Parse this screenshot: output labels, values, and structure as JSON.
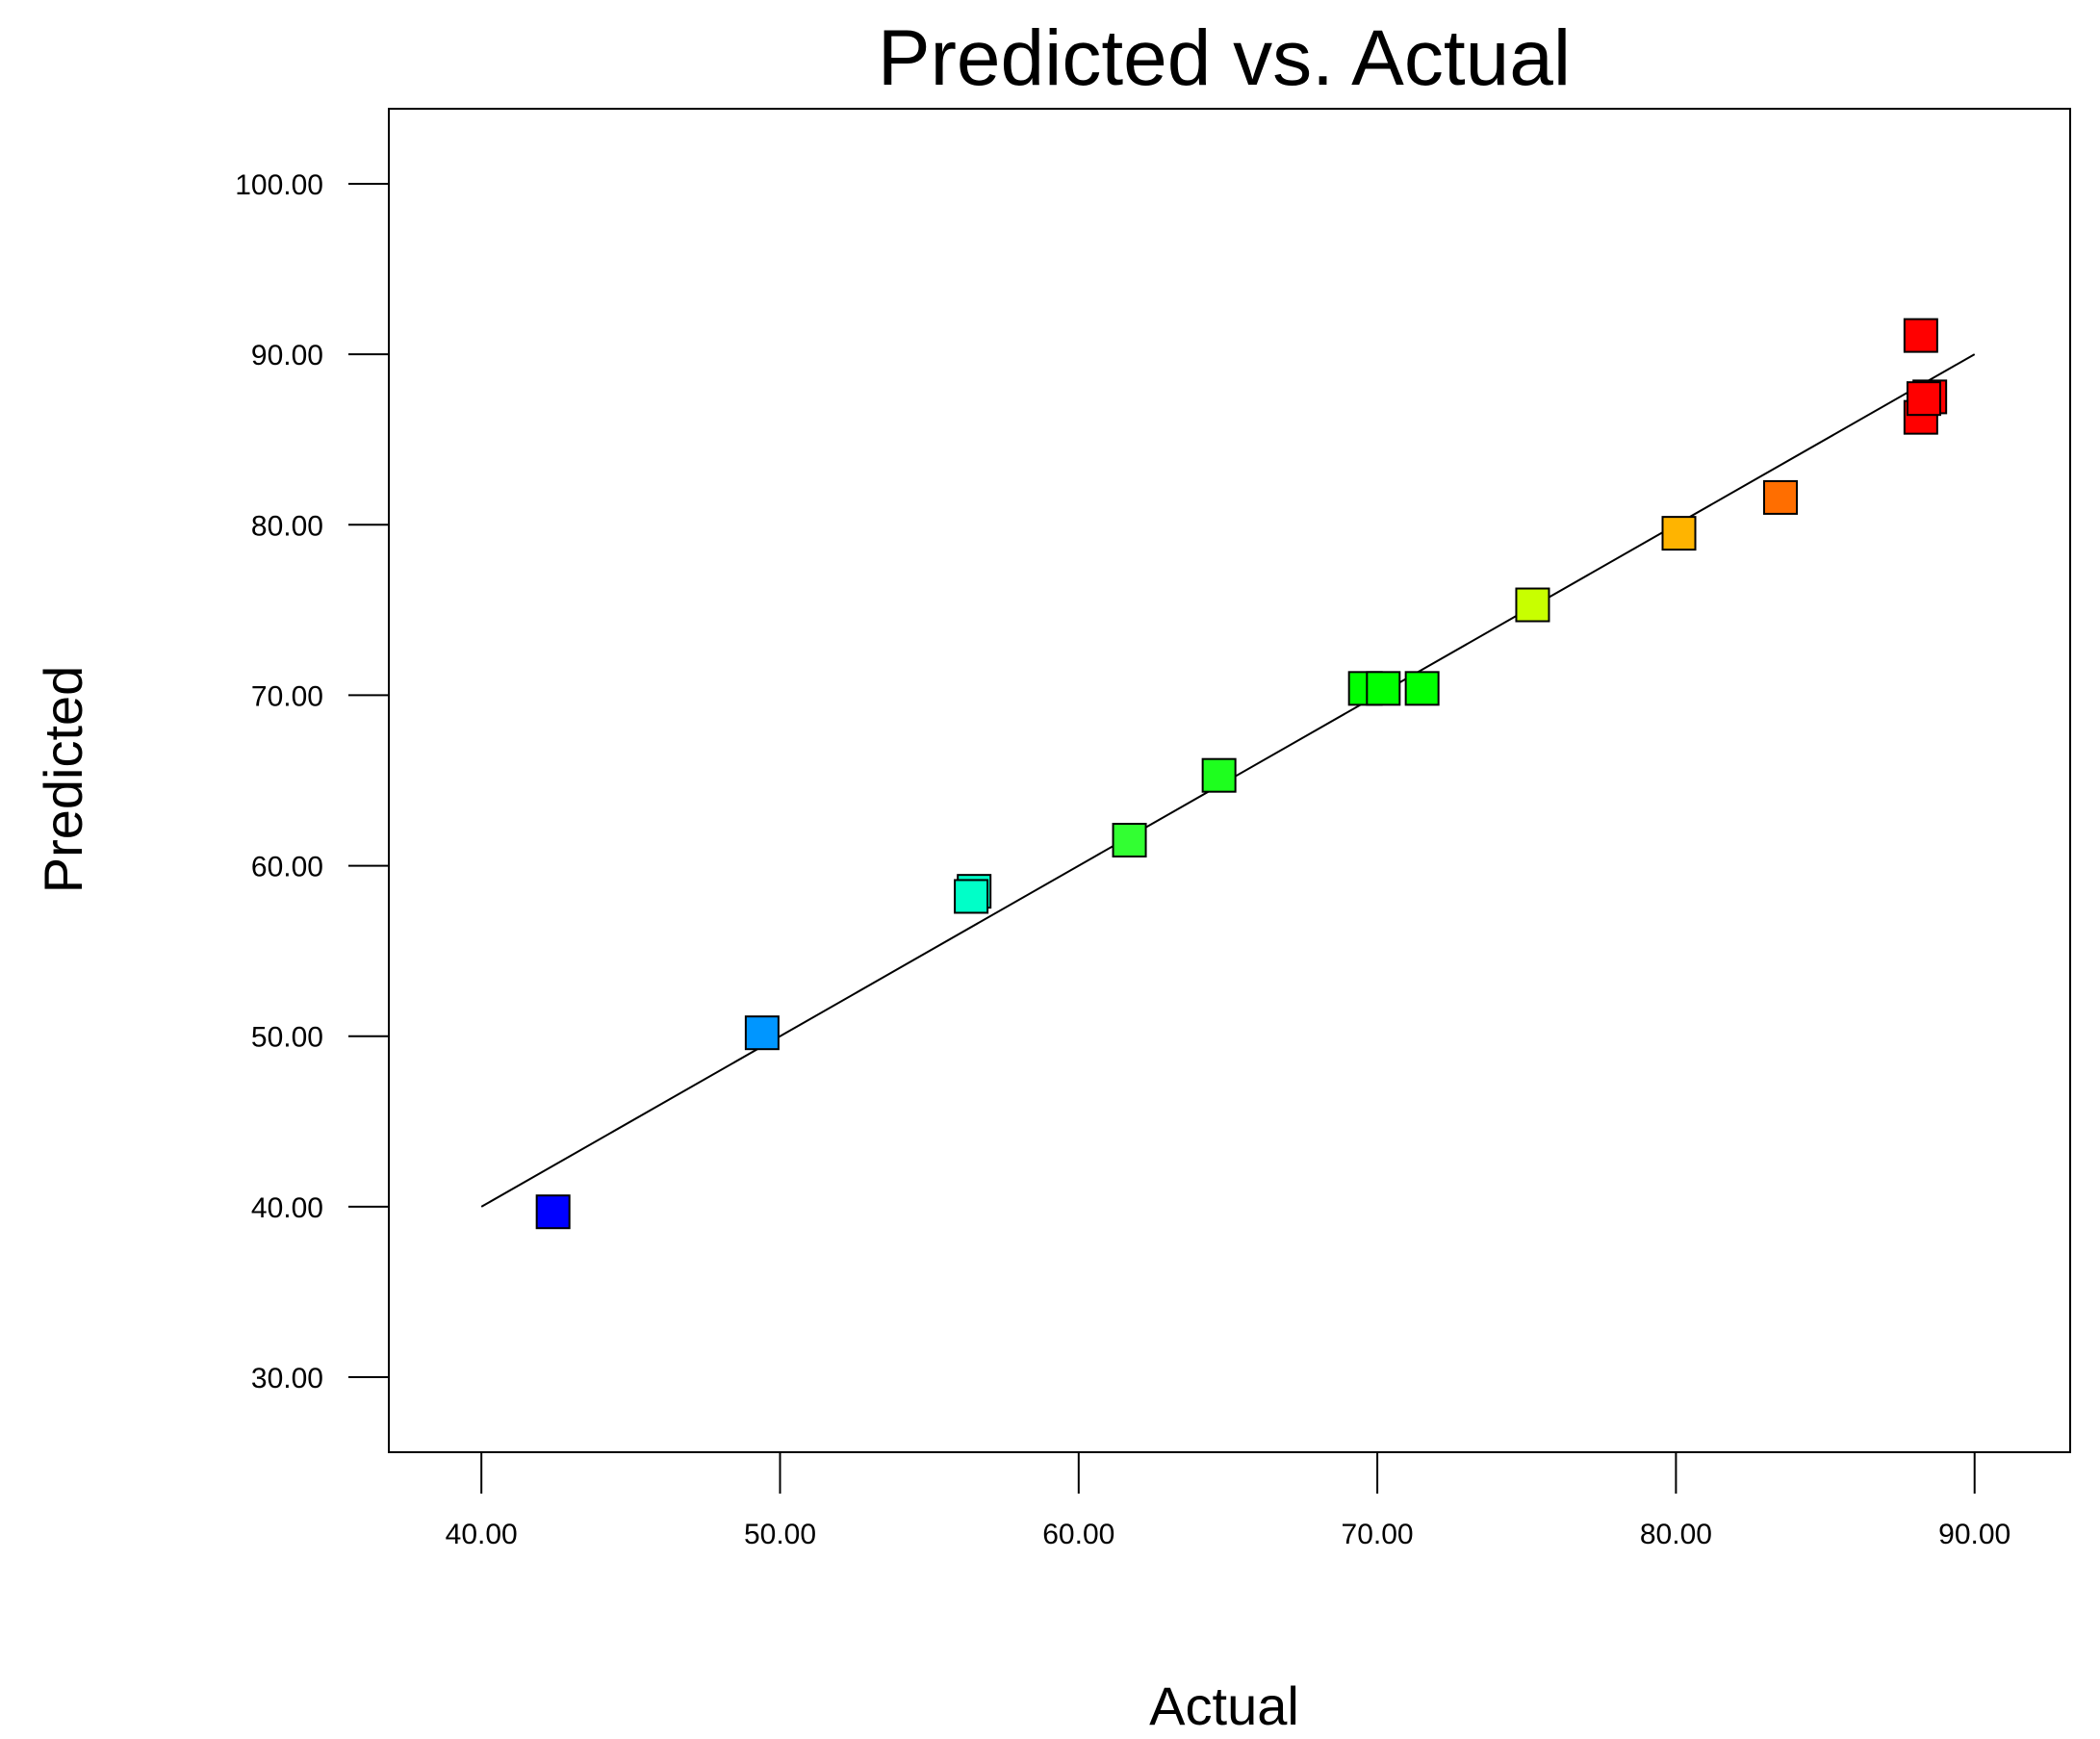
{
  "chart_data": {
    "type": "scatter",
    "title": "Predicted vs. Actual",
    "xlabel": "Actual",
    "ylabel": "Predicted",
    "xlim": [
      36.9,
      93.2
    ],
    "ylim": [
      25.6,
      104.4
    ],
    "x_ticks": [
      40,
      50,
      60,
      70,
      80,
      90
    ],
    "y_ticks": [
      30,
      40,
      50,
      60,
      70,
      80,
      90,
      100
    ],
    "x_tick_labels": [
      "40.00",
      "50.00",
      "60.00",
      "70.00",
      "80.00",
      "90.00"
    ],
    "y_tick_labels": [
      "30.00",
      "40.00",
      "50.00",
      "60.00",
      "70.00",
      "80.00",
      "90.00",
      "100.00"
    ],
    "grid": false,
    "reference_line": {
      "x": [
        40,
        90
      ],
      "y": [
        40,
        90
      ]
    },
    "points": [
      {
        "x": 42.4,
        "y": 39.7,
        "color": "#0000ff"
      },
      {
        "x": 49.4,
        "y": 50.2,
        "color": "#0096ff"
      },
      {
        "x": 56.5,
        "y": 58.5,
        "color": "#00ffc8"
      },
      {
        "x": 56.4,
        "y": 58.2,
        "color": "#00ffc8"
      },
      {
        "x": 61.7,
        "y": 61.5,
        "color": "#32ff32"
      },
      {
        "x": 64.7,
        "y": 65.3,
        "color": "#1eff1e"
      },
      {
        "x": 69.6,
        "y": 70.4,
        "color": "#00ff00"
      },
      {
        "x": 70.2,
        "y": 70.4,
        "color": "#00ff00"
      },
      {
        "x": 71.5,
        "y": 70.4,
        "color": "#00ff00"
      },
      {
        "x": 75.2,
        "y": 75.3,
        "color": "#c8ff00"
      },
      {
        "x": 80.1,
        "y": 79.5,
        "color": "#ffb400"
      },
      {
        "x": 83.5,
        "y": 81.6,
        "color": "#ff6e00"
      },
      {
        "x": 88.2,
        "y": 91.1,
        "color": "#ff0000"
      },
      {
        "x": 88.2,
        "y": 86.3,
        "color": "#ff0000"
      },
      {
        "x": 88.5,
        "y": 87.5,
        "color": "#ff0000"
      },
      {
        "x": 88.3,
        "y": 87.4,
        "color": "#ff0000"
      }
    ],
    "colors": {
      "line": "#000000",
      "marker_edge": "#000000",
      "frame": "#000000",
      "background": "#ffffff"
    }
  }
}
